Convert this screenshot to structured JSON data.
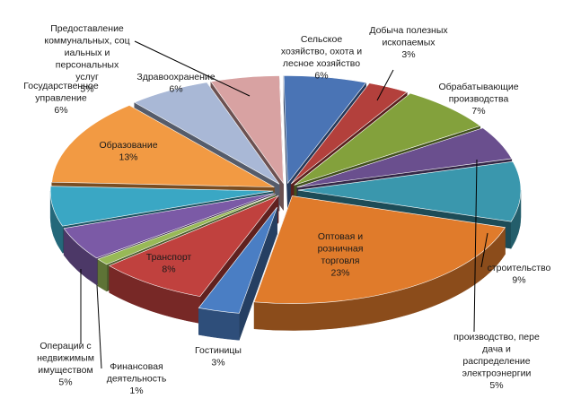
{
  "chart_data": {
    "type": "pie",
    "title": "",
    "legend": "none",
    "slices": [
      {
        "name": "Сельское хозяйство, охота и лесное хозяйство",
        "label_lines": [
          "Сельское",
          "хозяйство, охота и",
          "лесное  хозяйство",
          "6%"
        ],
        "value": 6,
        "color": "#4a74b5"
      },
      {
        "name": "Добыча полезных ископаемых",
        "label_lines": [
          "Добыча полезных",
          "ископаемых",
          "3%"
        ],
        "value": 3,
        "color": "#b3403c"
      },
      {
        "name": "Обрабатывающие производства",
        "label_lines": [
          "Обрабатывающие",
          "производства",
          "7%"
        ],
        "value": 7,
        "color": "#83a13c"
      },
      {
        "name": "производство, передача и распределение электроэнергии",
        "label_lines": [
          "производство, пере",
          "дача и",
          "распределение",
          "электроэнергии",
          "5%"
        ],
        "value": 5,
        "color": "#6a4f8e"
      },
      {
        "name": "строительство",
        "label_lines": [
          "строительство",
          "9%"
        ],
        "value": 9,
        "color": "#3a97ad"
      },
      {
        "name": "Оптовая и розничная торговля",
        "label_lines": [
          "Оптовая и",
          "розничная",
          "торговля",
          "23%"
        ],
        "value": 23,
        "color": "#e07b2b"
      },
      {
        "name": "Гостиницы",
        "label_lines": [
          "Гостиницы",
          "3%"
        ],
        "value": 3,
        "color": "#4a7ec4"
      },
      {
        "name": "Транспорт",
        "label_lines": [
          "Транспорт",
          "8%"
        ],
        "value": 8,
        "color": "#c0413e"
      },
      {
        "name": "Финансовая деятельность",
        "label_lines": [
          "Финансовая",
          "деятельность",
          "1%"
        ],
        "value": 1,
        "color": "#98b957"
      },
      {
        "name": "Операции с недвижимым имуществом",
        "label_lines": [
          "Операции с",
          "недвижимым",
          "имуществом",
          "5%"
        ],
        "value": 5,
        "color": "#7b5aa6"
      },
      {
        "name": "Государственное управление",
        "label_lines": [
          "Государственное",
          "управление",
          "6%"
        ],
        "value": 6,
        "color": "#3aa7c4"
      },
      {
        "name": "Образование",
        "label_lines": [
          "Образование",
          "13%"
        ],
        "value": 13,
        "color": "#f29a43"
      },
      {
        "name": "Здравоохранение",
        "label_lines": [
          "Здравоохранение",
          "6%"
        ],
        "value": 6,
        "color": "#a9b8d6"
      },
      {
        "name": "Предоставление коммунальных, социальных и персональных услуг",
        "label_lines": [
          "Предоставление",
          "коммунальных, соц",
          "иальных и",
          "персональных",
          "услуг",
          "5%"
        ],
        "value": 5,
        "color": "#d8a2a2"
      }
    ]
  }
}
